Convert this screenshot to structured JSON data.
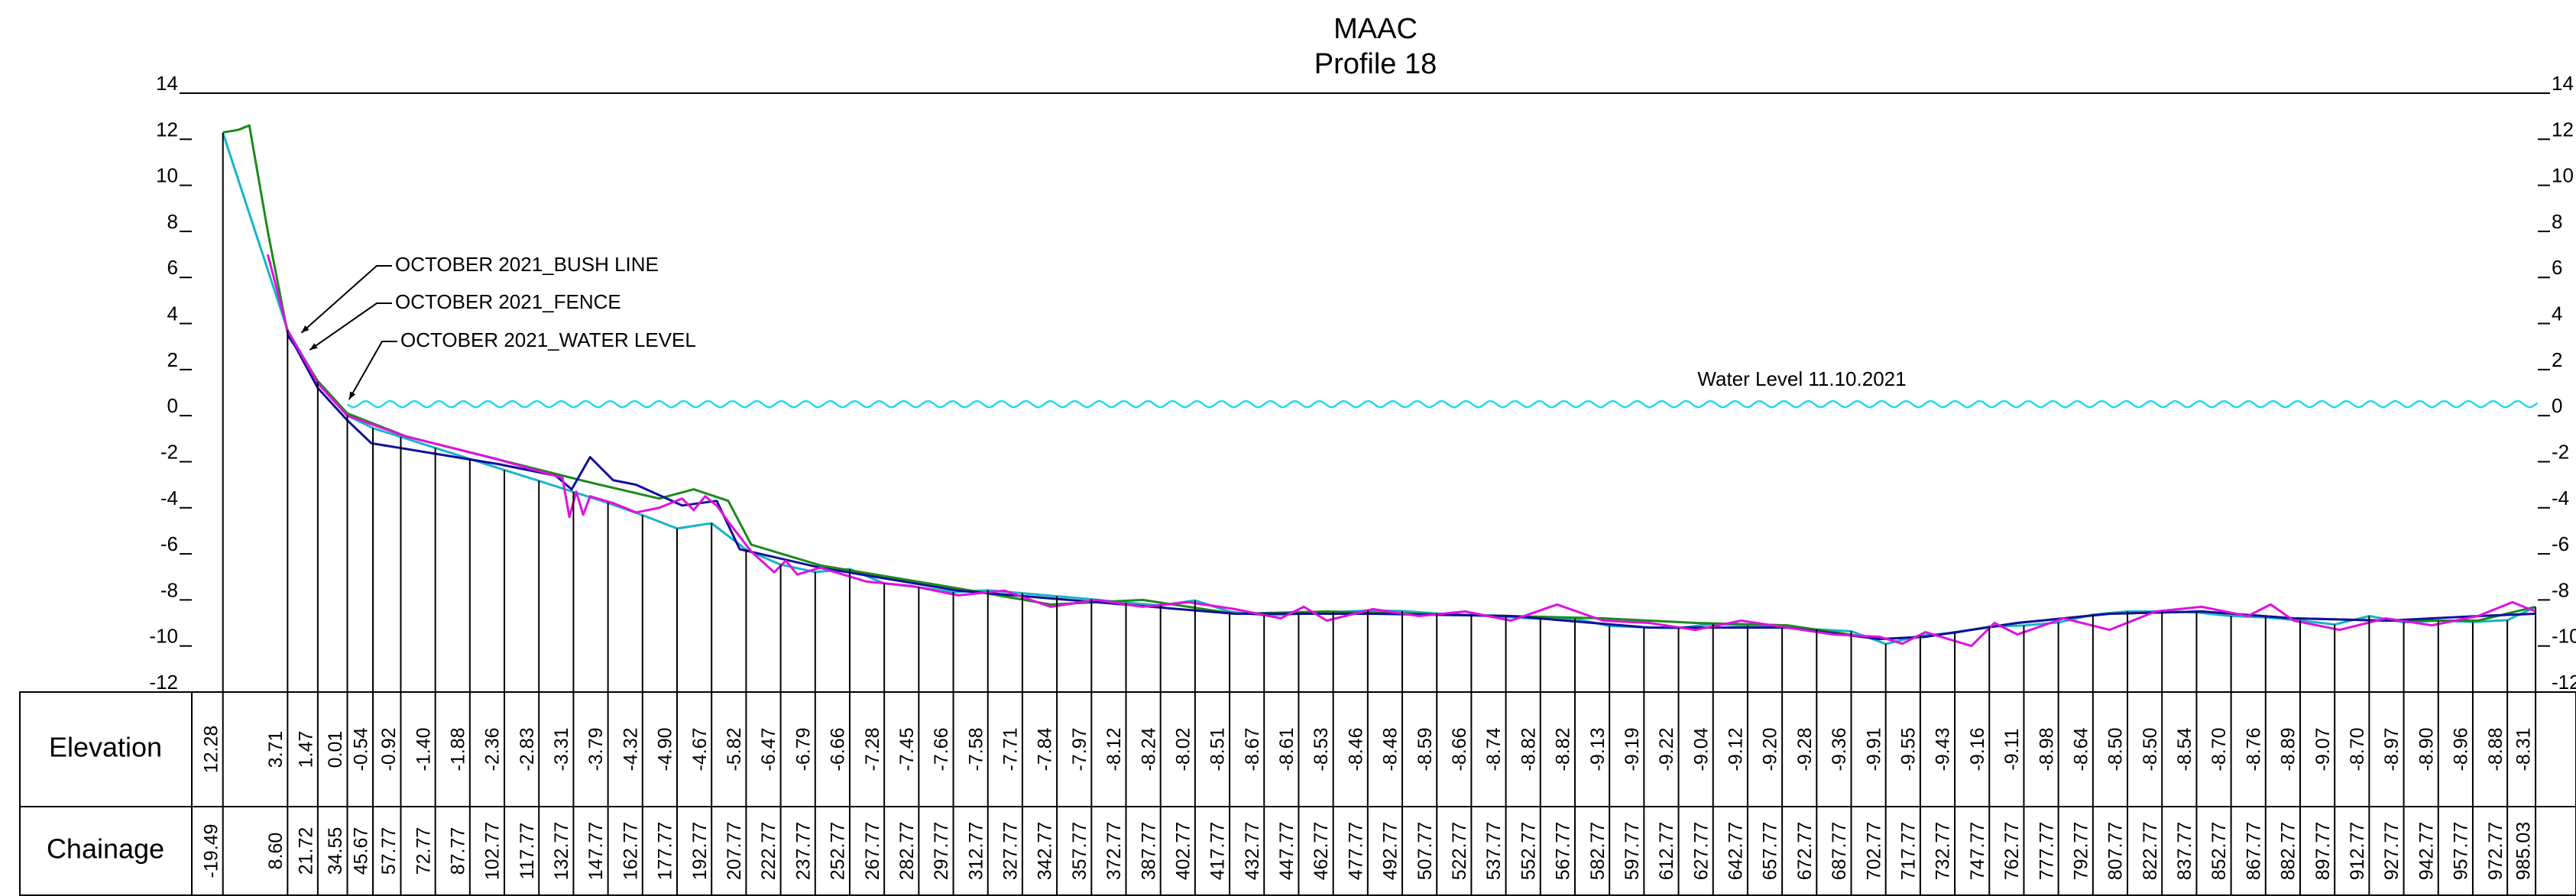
{
  "chart_data": {
    "type": "line",
    "title": "MAAC",
    "subtitle": "Profile 18",
    "xlim": [
      -33,
      986
    ],
    "ylim": [
      -12,
      14
    ],
    "yticks": [
      -12,
      -10,
      -8,
      -6,
      -4,
      -2,
      0,
      2,
      4,
      6,
      8,
      10,
      12,
      14
    ],
    "series": [
      {
        "color": "#17b5c5",
        "x": [
          -19.49,
          8.6,
          21.72,
          34.55,
          45.67,
          57.77,
          72.77,
          87.77,
          102.77,
          117.77,
          132.77,
          147.77,
          162.77,
          177.77,
          192.77,
          207.77,
          222.77,
          237.77,
          252.77,
          267.77,
          282.77,
          297.77,
          312.77,
          327.77,
          342.77,
          357.77,
          372.77,
          387.77,
          402.77,
          417.77,
          432.77,
          447.77,
          462.77,
          477.77,
          492.77,
          507.77,
          522.77,
          537.77,
          552.77,
          567.77,
          582.77,
          597.77,
          612.77,
          627.77,
          642.77,
          657.77,
          672.77,
          687.77,
          702.77,
          717.77,
          732.77,
          747.77,
          762.77,
          777.77,
          792.77,
          807.77,
          822.77,
          837.77,
          852.77,
          867.77,
          882.77,
          897.77,
          912.77,
          927.77,
          942.77,
          957.77,
          972.77,
          985.03
        ],
        "x_labels": [
          "-19.49",
          "8.60",
          "21.72",
          "34.55",
          "45.67",
          "57.77",
          "72.77",
          "87.77",
          "102.77",
          "117.77",
          "132.77",
          "147.77",
          "162.77",
          "177.77",
          "192.77",
          "207.77",
          "222.77",
          "237.77",
          "252.77",
          "267.77",
          "282.77",
          "297.77",
          "312.77",
          "327.77",
          "342.77",
          "357.77",
          "372.77",
          "387.77",
          "402.77",
          "417.77",
          "432.77",
          "447.77",
          "462.77",
          "477.77",
          "492.77",
          "507.77",
          "522.77",
          "537.77",
          "552.77",
          "567.77",
          "582.77",
          "597.77",
          "612.77",
          "627.77",
          "642.77",
          "657.77",
          "672.77",
          "687.77",
          "702.77",
          "717.77",
          "732.77",
          "747.77",
          "762.77",
          "777.77",
          "792.77",
          "807.77",
          "822.77",
          "837.77",
          "852.77",
          "867.77",
          "882.77",
          "897.77",
          "912.77",
          "927.77",
          "942.77",
          "957.77",
          "972.77",
          "985.03"
        ],
        "values": [
          12.28,
          3.71,
          1.47,
          0.01,
          -0.54,
          -0.92,
          -1.4,
          -1.88,
          -2.36,
          -2.83,
          -3.31,
          -3.79,
          -4.32,
          -4.9,
          -4.67,
          -5.82,
          -6.47,
          -6.79,
          -6.66,
          -7.28,
          -7.45,
          -7.66,
          -7.58,
          -7.71,
          -7.84,
          -7.97,
          -8.12,
          -8.24,
          -8.02,
          -8.51,
          -8.67,
          -8.61,
          -8.53,
          -8.46,
          -8.48,
          -8.59,
          -8.66,
          -8.74,
          -8.82,
          -8.82,
          -9.13,
          -9.19,
          -9.22,
          -9.04,
          -9.12,
          -9.2,
          -9.28,
          -9.36,
          -9.91,
          -9.55,
          -9.43,
          -9.16,
          -9.11,
          -8.98,
          -8.64,
          -8.5,
          -8.5,
          -8.54,
          -8.7,
          -8.76,
          -8.89,
          -9.07,
          -8.7,
          -8.97,
          -8.9,
          -8.96,
          -8.88,
          -8.31
        ],
        "value_labels": [
          "12.28",
          "3.71",
          "1.47",
          "0.01",
          "-0.54",
          "-0.92",
          "-1.40",
          "-1.88",
          "-2.36",
          "-2.83",
          "-3.31",
          "-3.79",
          "-4.32",
          "-4.90",
          "-4.67",
          "-5.82",
          "-6.47",
          "-6.79",
          "-6.66",
          "-7.28",
          "-7.45",
          "-7.66",
          "-7.58",
          "-7.71",
          "-7.84",
          "-7.97",
          "-8.12",
          "-8.24",
          "-8.02",
          "-8.51",
          "-8.67",
          "-8.61",
          "-8.53",
          "-8.46",
          "-8.48",
          "-8.59",
          "-8.66",
          "-8.74",
          "-8.82",
          "-8.82",
          "-9.13",
          "-9.19",
          "-9.22",
          "-9.04",
          "-9.12",
          "-9.20",
          "-9.28",
          "-9.36",
          "-9.91",
          "-9.55",
          "-9.43",
          "-9.16",
          "-9.11",
          "-8.98",
          "-8.64",
          "-8.50",
          "-8.50",
          "-8.54",
          "-8.70",
          "-8.76",
          "-8.89",
          "-9.07",
          "-8.70",
          "-8.97",
          "-8.90",
          "-8.96",
          "-8.88",
          "-8.31"
        ]
      },
      {
        "color": "#1a8a1a",
        "x": [
          -19.49,
          -13,
          -8,
          0,
          8.6,
          21.72,
          34.55,
          60,
          100,
          140,
          170,
          185,
          200,
          210,
          240,
          300,
          340,
          380,
          420,
          460,
          500,
          540,
          580,
          620,
          660,
          700,
          720,
          760,
          800,
          840,
          880,
          920,
          960,
          985
        ],
        "values": [
          12.3,
          12.4,
          12.6,
          8,
          3.6,
          1.5,
          0.1,
          -0.9,
          -1.9,
          -2.9,
          -3.6,
          -3.2,
          -3.7,
          -5.6,
          -6.5,
          -7.5,
          -8.2,
          -8.0,
          -8.6,
          -8.5,
          -8.6,
          -8.7,
          -8.8,
          -9.0,
          -9.1,
          -9.7,
          -9.6,
          -9.0,
          -8.6,
          -8.5,
          -8.8,
          -8.9,
          -8.9,
          -8.3
        ]
      },
      {
        "color": "#10109a",
        "x": [
          8.6,
          12,
          21.72,
          34.55,
          45,
          100,
          125,
          132,
          140,
          150,
          160,
          180,
          195,
          205,
          240,
          300,
          360,
          420,
          480,
          540,
          600,
          660,
          700,
          720,
          760,
          800,
          840,
          880,
          920,
          960,
          985
        ],
        "values": [
          3.5,
          3.0,
          1.2,
          -0.2,
          -1.2,
          -2.1,
          -2.6,
          -3.2,
          -1.8,
          -2.8,
          -3.0,
          -3.9,
          -3.7,
          -5.8,
          -6.6,
          -7.6,
          -8.1,
          -8.6,
          -8.6,
          -8.7,
          -9.2,
          -9.2,
          -9.7,
          -9.6,
          -9.0,
          -8.6,
          -8.5,
          -8.8,
          -8.9,
          -8.7,
          -8.6
        ]
      },
      {
        "color": "#e010e0",
        "x": [
          0,
          8.6,
          21.72,
          34.55,
          60,
          100,
          128,
          131,
          134,
          137,
          140,
          150,
          160,
          170,
          180,
          185,
          190,
          195,
          200,
          210,
          220,
          225,
          230,
          240,
          260,
          280,
          300,
          320,
          340,
          360,
          380,
          400,
          420,
          440,
          450,
          460,
          480,
          500,
          520,
          540,
          560,
          580,
          600,
          620,
          640,
          660,
          680,
          700,
          710,
          720,
          740,
          750,
          760,
          780,
          800,
          820,
          840,
          860,
          870,
          880,
          900,
          920,
          940,
          960,
          975,
          985
        ],
        "values": [
          7,
          3.7,
          1.4,
          0.0,
          -0.9,
          -1.9,
          -2.7,
          -4.4,
          -3.3,
          -4.3,
          -3.5,
          -3.8,
          -4.2,
          -4.0,
          -3.6,
          -4.1,
          -3.5,
          -3.9,
          -4.6,
          -5.9,
          -6.8,
          -6.3,
          -6.9,
          -6.6,
          -7.2,
          -7.4,
          -7.8,
          -7.6,
          -8.3,
          -8.0,
          -8.3,
          -8.1,
          -8.4,
          -8.8,
          -8.3,
          -8.9,
          -8.4,
          -8.7,
          -8.5,
          -8.9,
          -8.2,
          -8.9,
          -9.0,
          -9.3,
          -8.9,
          -9.2,
          -9.5,
          -9.6,
          -9.9,
          -9.4,
          -10.0,
          -9.0,
          -9.5,
          -8.8,
          -9.3,
          -8.5,
          -8.3,
          -8.7,
          -8.2,
          -8.9,
          -9.3,
          -8.8,
          -9.1,
          -8.7,
          -8.1,
          -8.5
        ]
      }
    ],
    "water_level": {
      "label": "Water Level 11.10.2021",
      "value": 0.5,
      "x_start": 34.55,
      "color": "#22dbe8"
    },
    "annotations": [
      {
        "text": "OCTOBER 2021_BUSH LINE",
        "x": 14.6,
        "y": 3.6
      },
      {
        "text": "OCTOBER 2021_FENCE",
        "x": 18.2,
        "y": 2.85
      },
      {
        "text": "OCTOBER 2021_WATER LEVEL",
        "x": 35.3,
        "y": 0.7
      }
    ],
    "table": {
      "row_labels": [
        "Elevation",
        "Chainage"
      ]
    }
  }
}
